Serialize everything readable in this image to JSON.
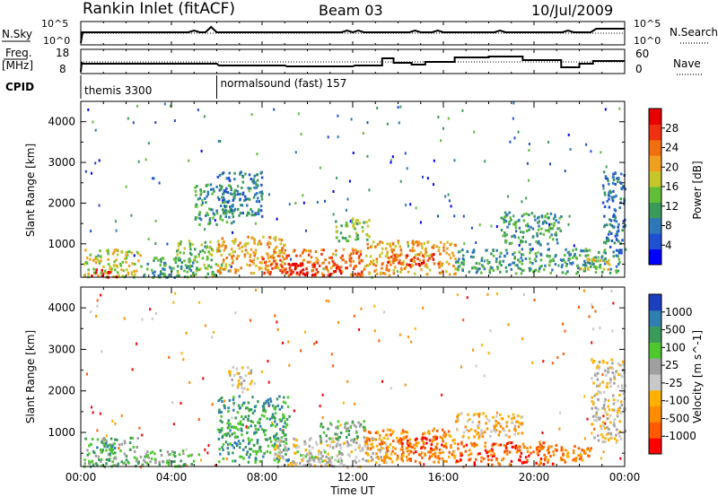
{
  "header": {
    "station": "Rankin Inlet (fitACF)",
    "beam": "Beam 03",
    "date": "10/Jul/2009"
  },
  "nsky_panel": {
    "label": "N.Sky",
    "y_ticks": [
      "10^5",
      "10^0"
    ],
    "right_label": "N.Search",
    "right_ticks": [
      "10^5",
      "10^0"
    ],
    "right_legend_style": "dotted"
  },
  "freq_panel": {
    "label_line1": "Freq.",
    "label_line2": "[MHz]",
    "y_ticks": [
      "18",
      "8"
    ],
    "right_label": "Nave",
    "right_ticks": [
      "60",
      "0"
    ],
    "right_legend_style": "dotted"
  },
  "cpid_panel": {
    "label": "CPID",
    "modes": [
      {
        "text": "themis 3300",
        "start_ut": 0.0
      },
      {
        "text": "normalsound (fast) 157",
        "start_ut": 6.0
      }
    ]
  },
  "chart_data": [
    {
      "type": "heatmap",
      "name": "power",
      "ylabel": "Slant Range [km]",
      "ylim": [
        180,
        4500
      ],
      "y_ticks": [
        1000,
        2000,
        3000,
        4000
      ],
      "xlim": [
        0,
        24
      ],
      "colorbar": {
        "label": "Power [dB]",
        "ticks": [
          "28",
          "24",
          "20",
          "16",
          "12",
          "8",
          "4"
        ],
        "colors": [
          "#0000ff",
          "#1f4fd2",
          "#2e78b8",
          "#3a9a5a",
          "#62bd3a",
          "#c6c62a",
          "#f0a020",
          "#f07010",
          "#f03010",
          "#e80000"
        ]
      },
      "regions": [
        {
          "t0": 0.1,
          "t1": 2.6,
          "r0": 200,
          "r1": 900,
          "level": 5
        },
        {
          "t0": 0.4,
          "t1": 1.6,
          "r0": 200,
          "r1": 400,
          "level": 9
        },
        {
          "t0": 2.6,
          "t1": 5.0,
          "r0": 200,
          "r1": 700,
          "level": 3
        },
        {
          "t0": 4.2,
          "t1": 6.2,
          "r0": 200,
          "r1": 1100,
          "level": 4
        },
        {
          "t0": 5.0,
          "t1": 6.8,
          "r0": 1500,
          "r1": 2500,
          "level": 3
        },
        {
          "t0": 6.0,
          "t1": 9.0,
          "r0": 300,
          "r1": 1200,
          "level": 6
        },
        {
          "t0": 6.0,
          "t1": 8.0,
          "r0": 1700,
          "r1": 2800,
          "level": 2
        },
        {
          "t0": 8.0,
          "t1": 12.5,
          "r0": 250,
          "r1": 900,
          "level": 7
        },
        {
          "t0": 9.0,
          "t1": 11.5,
          "r0": 250,
          "r1": 550,
          "level": 9
        },
        {
          "t0": 12.5,
          "t1": 16.5,
          "r0": 250,
          "r1": 1100,
          "level": 6
        },
        {
          "t0": 13.5,
          "t1": 15.8,
          "r0": 500,
          "r1": 800,
          "level": 8
        },
        {
          "t0": 11.2,
          "t1": 12.7,
          "r0": 1100,
          "r1": 1650,
          "level": 4
        },
        {
          "t0": 16.5,
          "t1": 20.5,
          "r0": 300,
          "r1": 900,
          "level": 3
        },
        {
          "t0": 18.5,
          "t1": 21.2,
          "r0": 1000,
          "r1": 1800,
          "level": 3
        },
        {
          "t0": 20.5,
          "t1": 23.8,
          "r0": 300,
          "r1": 900,
          "level": 3
        },
        {
          "t0": 21.8,
          "t1": 23.4,
          "r0": 400,
          "r1": 700,
          "level": 5
        },
        {
          "t0": 23.0,
          "t1": 24.0,
          "r0": 800,
          "r1": 2800,
          "level": 2
        }
      ]
    },
    {
      "type": "heatmap",
      "name": "velocity",
      "ylabel": "Slant Range [km]",
      "ylim": [
        180,
        4500
      ],
      "y_ticks": [
        1000,
        2000,
        3000,
        4000
      ],
      "xlim": [
        0,
        24
      ],
      "xlabel": "Time UT",
      "x_ticks": [
        "00:00",
        "04:00",
        "08:00",
        "12:00",
        "16:00",
        "20:00",
        "00:00"
      ],
      "colorbar": {
        "label": "Velocity [m s^-1]",
        "ticks": [
          "1000",
          "500",
          "100",
          "25",
          "-25",
          "-100",
          "-500",
          "-1000"
        ],
        "colors": [
          "#ff0000",
          "#ff5a00",
          "#ff8c00",
          "#ffb000",
          "#c8c8c8",
          "#a0a0a0",
          "#4fc830",
          "#3a9a5a",
          "#2f7fb0",
          "#1c3fc0"
        ]
      },
      "regions": [
        {
          "t0": 0.1,
          "t1": 2.6,
          "r0": 200,
          "r1": 900,
          "level": 6
        },
        {
          "t0": 0.3,
          "t1": 1.5,
          "r0": 500,
          "r1": 800,
          "level": 7
        },
        {
          "t0": 2.6,
          "t1": 5.2,
          "r0": 200,
          "r1": 600,
          "level": 6
        },
        {
          "t0": 6.0,
          "t1": 9.2,
          "r0": 300,
          "r1": 1900,
          "level": 7
        },
        {
          "t0": 8.5,
          "t1": 13.5,
          "r0": 200,
          "r1": 900,
          "level": 4
        },
        {
          "t0": 9.5,
          "t1": 11.5,
          "r0": 250,
          "r1": 600,
          "level": 5
        },
        {
          "t0": 10.5,
          "t1": 12.5,
          "r0": 800,
          "r1": 1300,
          "level": 6
        },
        {
          "t0": 12.5,
          "t1": 16.5,
          "r0": 300,
          "r1": 1100,
          "level": 2
        },
        {
          "t0": 14.0,
          "t1": 16.0,
          "r0": 500,
          "r1": 900,
          "level": 1
        },
        {
          "t0": 16.5,
          "t1": 21.0,
          "r0": 250,
          "r1": 800,
          "level": 1
        },
        {
          "t0": 16.5,
          "t1": 19.5,
          "r0": 900,
          "r1": 1500,
          "level": 3
        },
        {
          "t0": 20.0,
          "t1": 22.5,
          "r0": 300,
          "r1": 700,
          "level": 2
        },
        {
          "t0": 22.5,
          "t1": 24.0,
          "r0": 800,
          "r1": 2800,
          "level": 4
        },
        {
          "t0": 6.5,
          "t1": 7.5,
          "r0": 2000,
          "r1": 2600,
          "level": 4
        }
      ]
    }
  ]
}
